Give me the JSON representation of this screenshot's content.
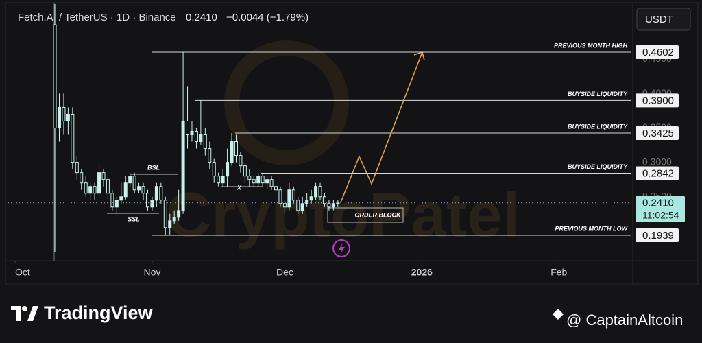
{
  "chart_data": {
    "type": "candlestick",
    "title": "Fetch.AI / TetherUS · 1D · Binance",
    "price": "0.2410",
    "change": "−0.0044 (−1.79%)",
    "currency": "USDT",
    "watermark": "CryptoPatel",
    "x": [
      9,
      10,
      11,
      12,
      13,
      14,
      15,
      16,
      17,
      18,
      19,
      20,
      21,
      22,
      23,
      24,
      25,
      26,
      27,
      28,
      29,
      30,
      31,
      32,
      33,
      34,
      35,
      36,
      37,
      38,
      39,
      40,
      41,
      42,
      43,
      44,
      45,
      46,
      47,
      48,
      49,
      50,
      51,
      52,
      53,
      54,
      55,
      56,
      57,
      58,
      59,
      60,
      61,
      62,
      63,
      64,
      65,
      66,
      67,
      68,
      69,
      70,
      71,
      72,
      73
    ],
    "open": [
      0.5,
      0.35,
      0.38,
      0.36,
      0.37,
      0.3,
      0.285,
      0.27,
      0.255,
      0.265,
      0.255,
      0.285,
      0.275,
      0.255,
      0.235,
      0.245,
      0.25,
      0.27,
      0.28,
      0.26,
      0.265,
      0.255,
      0.235,
      0.245,
      0.265,
      0.245,
      0.205,
      0.215,
      0.22,
      0.23,
      0.36,
      0.34,
      0.345,
      0.33,
      0.34,
      0.32,
      0.3,
      0.28,
      0.27,
      0.28,
      0.3,
      0.33,
      0.31,
      0.295,
      0.28,
      0.275,
      0.27,
      0.28,
      0.27,
      0.275,
      0.265,
      0.26,
      0.24,
      0.235,
      0.26,
      0.245,
      0.23,
      0.24,
      0.245,
      0.25,
      0.265,
      0.25,
      0.24,
      0.235,
      0.24
    ],
    "high": [
      0.53,
      0.4,
      0.4,
      0.38,
      0.38,
      0.31,
      0.29,
      0.28,
      0.27,
      0.27,
      0.3,
      0.29,
      0.28,
      0.26,
      0.25,
      0.27,
      0.28,
      0.285,
      0.285,
      0.27,
      0.27,
      0.26,
      0.25,
      0.27,
      0.27,
      0.25,
      0.225,
      0.23,
      0.26,
      0.46,
      0.41,
      0.36,
      0.35,
      0.39,
      0.35,
      0.33,
      0.305,
      0.285,
      0.29,
      0.32,
      0.3425,
      0.34,
      0.315,
      0.3,
      0.29,
      0.28,
      0.2842,
      0.285,
      0.28,
      0.28,
      0.27,
      0.265,
      0.245,
      0.27,
      0.265,
      0.25,
      0.25,
      0.255,
      0.26,
      0.27,
      0.27,
      0.255,
      0.245,
      0.245,
      0.245
    ],
    "low": [
      0.17,
      0.33,
      0.34,
      0.34,
      0.29,
      0.275,
      0.26,
      0.25,
      0.245,
      0.245,
      0.25,
      0.265,
      0.245,
      0.23,
      0.225,
      0.24,
      0.245,
      0.265,
      0.255,
      0.255,
      0.245,
      0.23,
      0.23,
      0.235,
      0.24,
      0.195,
      0.195,
      0.21,
      0.215,
      0.225,
      0.32,
      0.33,
      0.32,
      0.325,
      0.31,
      0.29,
      0.27,
      0.265,
      0.265,
      0.265,
      0.295,
      0.3,
      0.285,
      0.27,
      0.265,
      0.265,
      0.265,
      0.265,
      0.26,
      0.26,
      0.25,
      0.235,
      0.225,
      0.23,
      0.24,
      0.225,
      0.225,
      0.235,
      0.24,
      0.245,
      0.245,
      0.235,
      0.23,
      0.23,
      0.235
    ],
    "close": [
      0.35,
      0.38,
      0.36,
      0.37,
      0.3,
      0.285,
      0.27,
      0.255,
      0.265,
      0.255,
      0.285,
      0.275,
      0.255,
      0.235,
      0.245,
      0.25,
      0.27,
      0.28,
      0.26,
      0.265,
      0.255,
      0.235,
      0.245,
      0.265,
      0.245,
      0.205,
      0.215,
      0.22,
      0.23,
      0.36,
      0.34,
      0.345,
      0.33,
      0.34,
      0.32,
      0.3,
      0.28,
      0.27,
      0.28,
      0.3,
      0.33,
      0.31,
      0.295,
      0.28,
      0.275,
      0.27,
      0.28,
      0.27,
      0.275,
      0.265,
      0.26,
      0.24,
      0.235,
      0.26,
      0.245,
      0.23,
      0.24,
      0.245,
      0.25,
      0.265,
      0.25,
      0.24,
      0.235,
      0.24,
      0.241
    ],
    "up_color": "#c8f1ec",
    "down_color": "#131316",
    "xlim": [
      -1.55,
      139.7
    ],
    "xticks": [
      {
        "value": 0,
        "label": "Oct"
      },
      {
        "value": 31,
        "label": "Nov"
      },
      {
        "value": 61,
        "label": "Dec"
      },
      {
        "value": 92,
        "label": "2026"
      },
      {
        "value": 123,
        "label": "Feb"
      }
    ],
    "ylim": [
      0.157,
      0.531
    ],
    "yticks": [
      {
        "value": 0.25,
        "label": "0.2500"
      },
      {
        "value": 0.3,
        "label": "0.3000"
      },
      {
        "value": 0.35,
        "label": "0.3500"
      },
      {
        "value": 0.4,
        "label": "0.4000"
      },
      {
        "value": 0.45,
        "label": "0.4500"
      }
    ],
    "levels": [
      {
        "label": "PREVIOUS MONTH HIGH",
        "value": 0.4602
      },
      {
        "label": "BUYSIDE LIQUIDITY",
        "value": 0.39,
        "value_label": "0.3900"
      },
      {
        "label": "BUYSIDE LIQUIDITY",
        "value": 0.3425
      },
      {
        "label": "BUYSIDE LIQUIDITY",
        "value": 0.2842
      },
      {
        "label": "PREVIOUS MONTH LOW",
        "value": 0.1939
      }
    ],
    "last_price": {
      "value": 0.241,
      "label": "0.2410"
    },
    "countdown": "11:02:54",
    "annotations": [
      "BSL",
      "SSL",
      "X",
      "ORDER BLOCK"
    ]
  },
  "footer": {
    "brand": "TradingView",
    "credit": "@ CaptainAltcoin"
  }
}
